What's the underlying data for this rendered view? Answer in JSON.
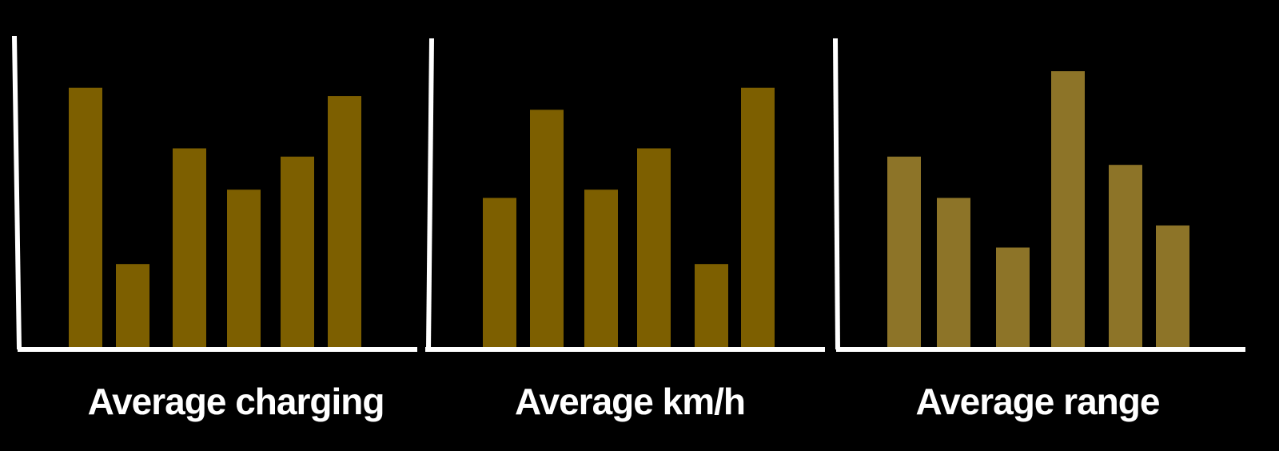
{
  "colors": {
    "background": "#000000",
    "axis": "#ffffff",
    "bar_dark": "#7d5f00",
    "bar_light": "#8d7428"
  },
  "chart_data": [
    {
      "type": "bar",
      "title": "Average charging",
      "color": "#7d5f00",
      "values": [
        95,
        31,
        73,
        58,
        70,
        92
      ],
      "ylim": [
        0,
        100
      ],
      "grid": false
    },
    {
      "type": "bar",
      "title": "Average km/h",
      "color": "#7d5f00",
      "values": [
        55,
        87,
        58,
        73,
        31,
        95
      ],
      "ylim": [
        0,
        100
      ],
      "grid": false
    },
    {
      "type": "bar",
      "title": "Average range",
      "color": "#8d7428",
      "values": [
        70,
        55,
        37,
        101,
        67,
        45
      ],
      "ylim": [
        0,
        100
      ],
      "grid": false
    }
  ]
}
